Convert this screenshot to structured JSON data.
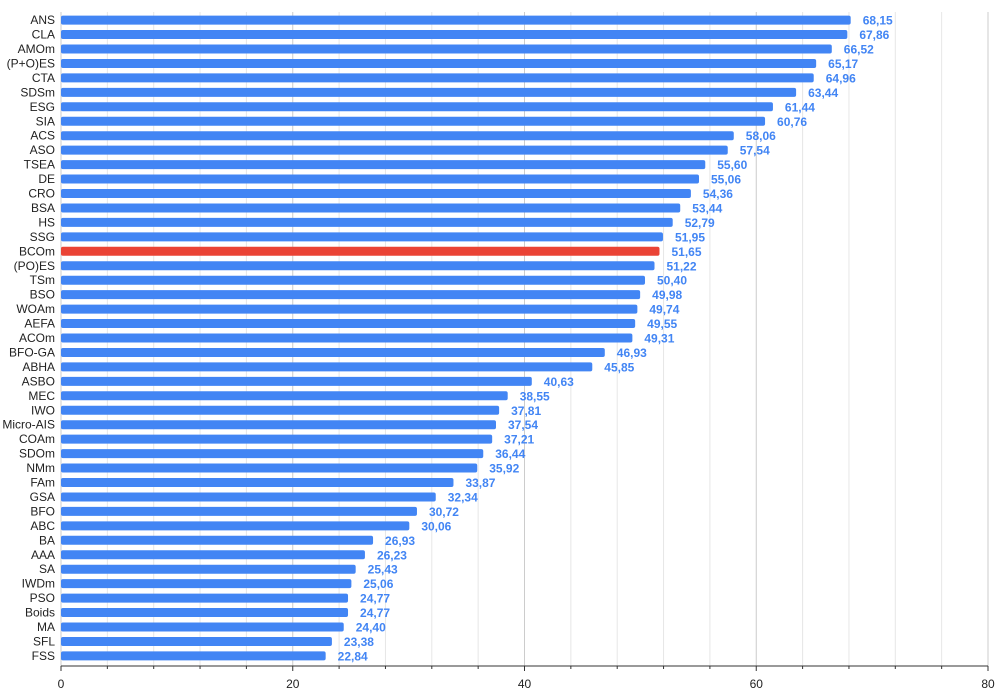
{
  "chart_data": {
    "type": "bar",
    "orientation": "horizontal",
    "categories": [
      "ANS",
      "CLA",
      "AMOm",
      "(P+O)ES",
      "CTA",
      "SDSm",
      "ESG",
      "SIA",
      "ACS",
      "ASO",
      "TSEA",
      "DE",
      "CRO",
      "BSA",
      "HS",
      "SSG",
      "BCOm",
      "(PO)ES",
      "TSm",
      "BSO",
      "WOAm",
      "AEFA",
      "ACOm",
      "BFO-GA",
      "ABHA",
      "ASBO",
      "MEC",
      "IWO",
      "Micro-AIS",
      "COAm",
      "SDOm",
      "NMm",
      "FAm",
      "GSA",
      "BFO",
      "ABC",
      "BA",
      "AAA",
      "SA",
      "IWDm",
      "PSO",
      "Boids",
      "MA",
      "SFL",
      "FSS"
    ],
    "values": [
      68.15,
      67.86,
      66.52,
      65.17,
      64.96,
      63.44,
      61.44,
      60.76,
      58.06,
      57.54,
      55.6,
      55.06,
      54.36,
      53.44,
      52.79,
      51.95,
      51.65,
      51.22,
      50.4,
      49.98,
      49.74,
      49.55,
      49.31,
      46.93,
      45.85,
      40.63,
      38.55,
      37.81,
      37.54,
      37.21,
      36.44,
      35.92,
      33.87,
      32.34,
      30.72,
      30.06,
      26.93,
      26.23,
      25.43,
      25.06,
      24.77,
      24.77,
      24.4,
      23.38,
      22.84
    ],
    "value_labels": [
      "68,15",
      "67,86",
      "66,52",
      "65,17",
      "64,96",
      "63,44",
      "61,44",
      "60,76",
      "58,06",
      "57,54",
      "55,60",
      "55,06",
      "54,36",
      "53,44",
      "52,79",
      "51,95",
      "51,65",
      "51,22",
      "50,40",
      "49,98",
      "49,74",
      "49,55",
      "49,31",
      "46,93",
      "45,85",
      "40,63",
      "38,55",
      "37,81",
      "37,54",
      "37,21",
      "36,44",
      "35,92",
      "33,87",
      "32,34",
      "30,72",
      "30,06",
      "26,93",
      "26,23",
      "25,43",
      "25,06",
      "24,77",
      "24,77",
      "24,40",
      "23,38",
      "22,84"
    ],
    "highlight_category": "BCOm",
    "xlim": [
      0,
      80
    ],
    "xticks": [
      0,
      20,
      40,
      60,
      80
    ],
    "grid": true,
    "title": "",
    "xlabel": "",
    "ylabel": "",
    "colors": {
      "bar": "#4285f4",
      "highlight": "#ea4335",
      "value_label": "#4285f4"
    }
  }
}
